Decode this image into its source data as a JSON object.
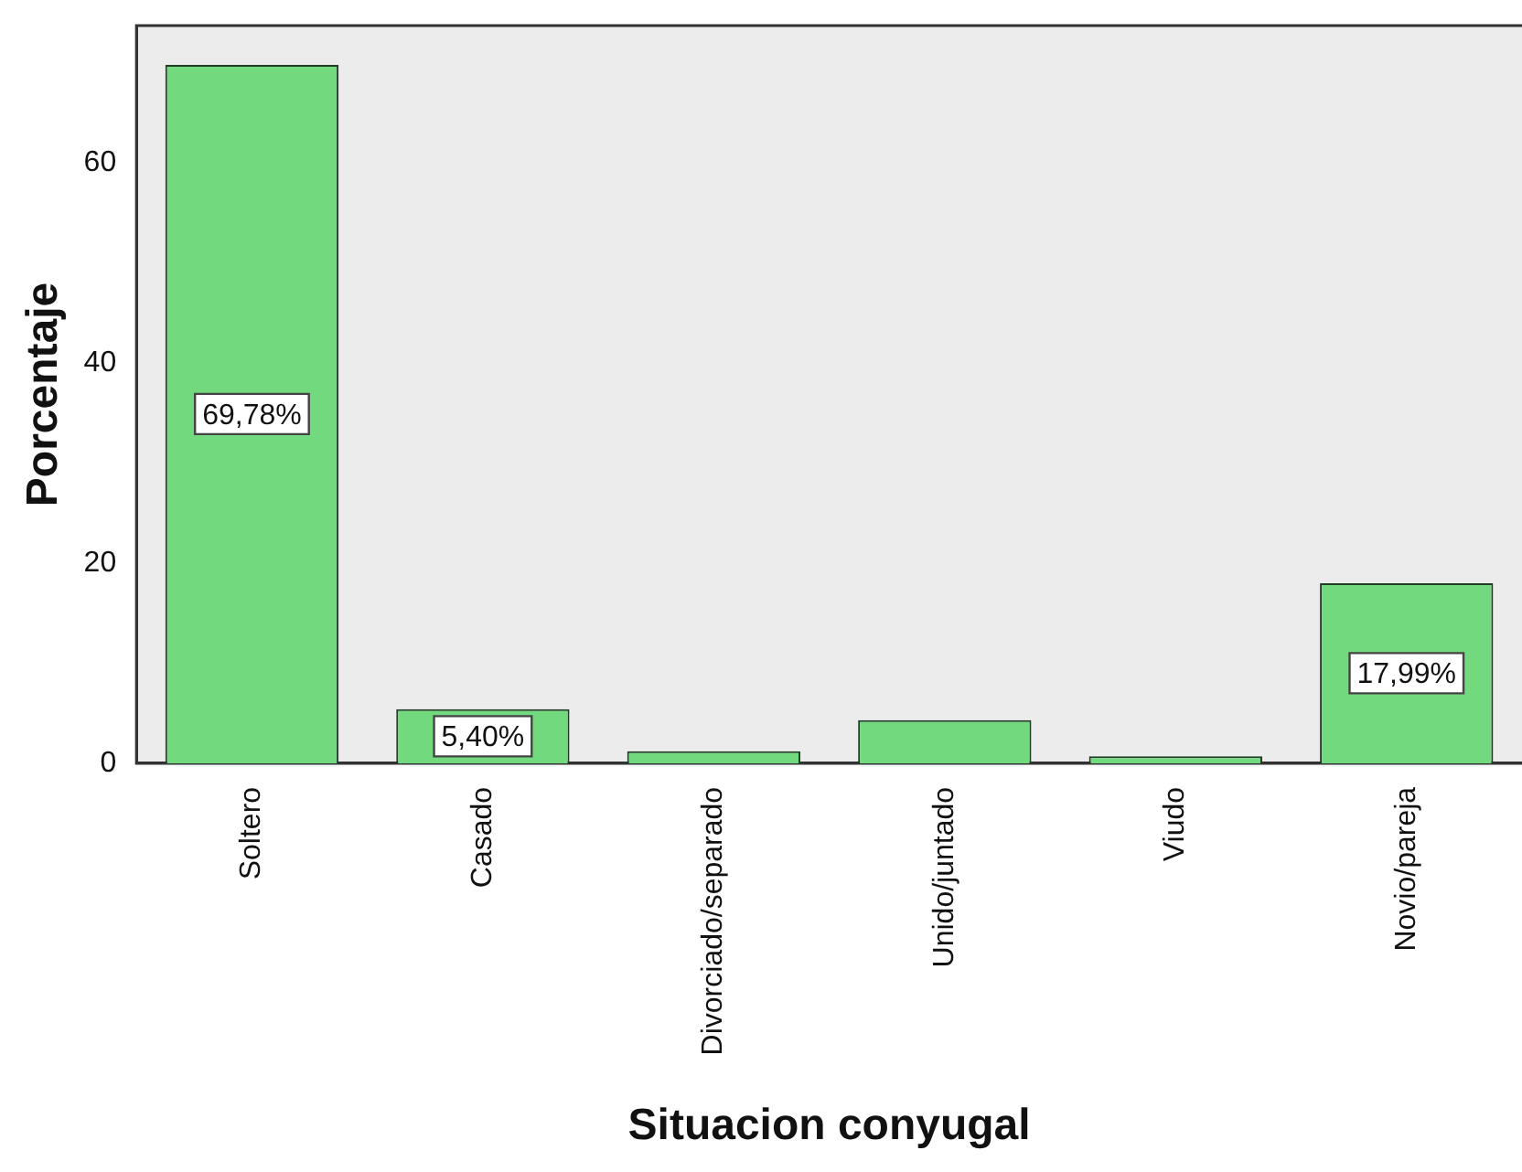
{
  "chart_data": {
    "type": "bar",
    "xlabel": "Situacion conyugal",
    "ylabel": "Porcentaje",
    "categories": [
      "Soltero",
      "Casado",
      "Divorciado/separado",
      "Unido/juntado",
      "Viudo",
      "Novio/pareja"
    ],
    "values": [
      69.78,
      5.4,
      1.2,
      4.3,
      0.7,
      17.99
    ],
    "value_labels": [
      "69,78%",
      "5,40%",
      null,
      null,
      null,
      "17,99%"
    ],
    "color": "#72d97f",
    "ylim": [
      0,
      73.7
    ],
    "yticks": [
      0,
      20,
      40,
      60
    ],
    "grid": false,
    "legend": false
  }
}
